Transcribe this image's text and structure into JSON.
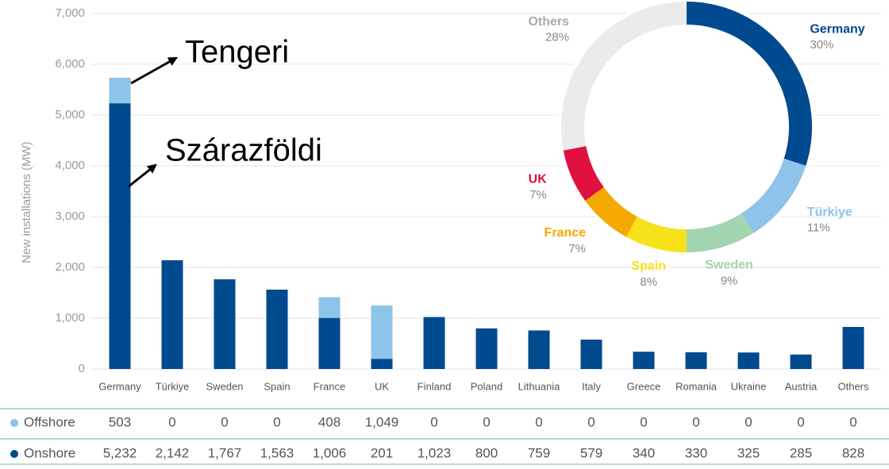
{
  "chart_data": [
    {
      "type": "bar",
      "stacked": true,
      "ylabel": "New installations (MW)",
      "categories": [
        "Germany",
        "Türkiye",
        "Sweden",
        "Spain",
        "France",
        "UK",
        "Finland",
        "Poland",
        "Lithuania",
        "Italy",
        "Greece",
        "Romania",
        "Ukraine",
        "Austria",
        "Others"
      ],
      "series": [
        {
          "name": "Offshore",
          "color": "#8ec3ea",
          "values": [
            503,
            0,
            0,
            0,
            408,
            1049,
            0,
            0,
            0,
            0,
            0,
            0,
            0,
            0,
            0
          ],
          "value_labels": [
            "503",
            "0",
            "0",
            "0",
            "408",
            "1,049",
            "0",
            "0",
            "0",
            "0",
            "0",
            "0",
            "0",
            "0",
            "0"
          ]
        },
        {
          "name": "Onshore",
          "color": "#004a8f",
          "values": [
            5232,
            2142,
            1767,
            1563,
            1006,
            201,
            1023,
            800,
            759,
            579,
            340,
            330,
            325,
            285,
            828
          ],
          "value_labels": [
            "5,232",
            "2,142",
            "1,767",
            "1,563",
            "1,006",
            "201",
            "1,023",
            "800",
            "759",
            "579",
            "340",
            "330",
            "325",
            "285",
            "828"
          ]
        }
      ],
      "ylim": [
        0,
        7000
      ],
      "yticks": [
        0,
        {
          "value": 1000,
          "label": "1,000"
        },
        {
          "value": 2000,
          "label": "2,000"
        },
        {
          "value": 3000,
          "label": "3,000"
        },
        {
          "value": 4000,
          "label": "4,000"
        },
        {
          "value": 5000,
          "label": "5,000"
        },
        {
          "value": 6000,
          "label": "6,000"
        },
        {
          "value": 7000,
          "label": "7,000"
        }
      ],
      "grid": true,
      "annotations": [
        "Tengeri",
        "Szárazföldi"
      ]
    },
    {
      "type": "pie",
      "donut": true,
      "categories": [
        "Germany",
        "Türkiye",
        "Sweden",
        "Spain",
        "France",
        "UK",
        "Others"
      ],
      "values": [
        30,
        11,
        9,
        8,
        7,
        7,
        28
      ],
      "value_labels": [
        "30%",
        "11%",
        "9%",
        "8%",
        "7%",
        "7%",
        "28%"
      ],
      "colors": [
        "#004a8f",
        "#8ec3ea",
        "#a3d4b0",
        "#f5e21b",
        "#f5a800",
        "#e0103f",
        "#ebebeb"
      ]
    }
  ]
}
